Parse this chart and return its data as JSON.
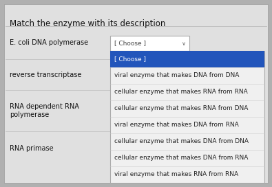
{
  "title": "Match the enzyme with its description",
  "background_color": "#b0b0b0",
  "panel_color": "#e0e0e0",
  "left_labels": [
    "E. coli DNA polymerase",
    "reverse transcriptase",
    "RNA dependent RNA\npolymerase",
    "RNA primase"
  ],
  "choose_box_text": "[ Choose ]",
  "dropdown_highlight_color": "#2255bb",
  "dropdown_bg_color": "#f0f0f0",
  "dropdown_items": [
    "[ Choose ]",
    "viral enzyme that makes DNA from DNA",
    "cellular enzyme that makes RNA from RNA",
    "cellular enzyme that makes RNA from DNA",
    "viral enzyme that makes DNA from RNA",
    "cellular enzyme that makes DNA from DNA",
    "cellular enzyme that makes DNA from RNA",
    "viral enzyme that makes RNA from RNA"
  ],
  "title_fontsize": 8.5,
  "label_fontsize": 7.0,
  "dropdown_fontsize": 6.5,
  "title_color": "#111111",
  "label_color": "#111111",
  "divider_color": "#bbbbbb"
}
